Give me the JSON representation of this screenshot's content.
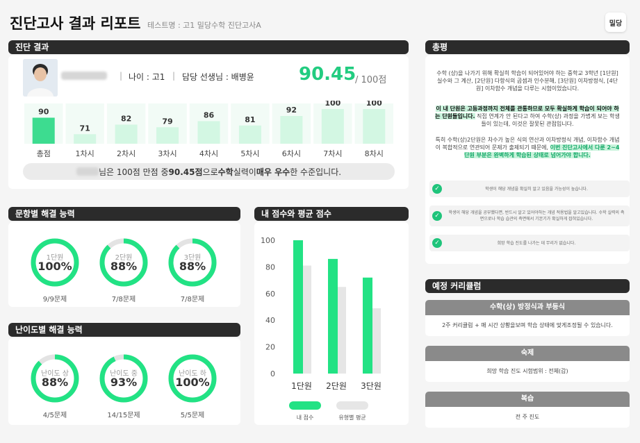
{
  "header": {
    "title": "진단고사 결과 리포트",
    "subtitle": "테스트명 : 고1 밀당수학 진단고사A",
    "logo": "밀당"
  },
  "result": {
    "section_title": "진단 결과",
    "age": "나이 : 고1",
    "teacher": "담당 선생님 : 배병윤",
    "score": "90.45",
    "score_max": "/ 100점",
    "summary_pre": "님은 100점 만점 중 ",
    "summary_score": "90.45점",
    "summary_mid1": "으로 ",
    "summary_subject": "수학",
    "summary_mid2": "실력이 ",
    "summary_level": "매우 우수",
    "summary_post": "한 수준입니다."
  },
  "session_chart": {
    "categories": [
      "총점",
      "1차시",
      "2차시",
      "3차시",
      "4차시",
      "5차시",
      "6차시",
      "7차시",
      "8차시"
    ],
    "values": [
      "90",
      "71",
      "82",
      "79",
      "86",
      "81",
      "92",
      "100",
      "100"
    ],
    "highlight_color": "#3ddc90",
    "bar_color": "#d3f7e3"
  },
  "ability": {
    "title": "문항별 해결 능력",
    "items": [
      {
        "name": "1단원",
        "pct": "100%",
        "count": "9/9문제",
        "ratio": 1.0
      },
      {
        "name": "2단원",
        "pct": "88%",
        "count": "7/8문제",
        "ratio": 0.88
      },
      {
        "name": "3단원",
        "pct": "88%",
        "count": "7/8문제",
        "ratio": 0.88
      }
    ]
  },
  "difficulty": {
    "title": "난이도별 해결 능력",
    "items": [
      {
        "name": "난이도 상",
        "pct": "88%",
        "count": "4/5문제",
        "ratio": 0.88
      },
      {
        "name": "난이도 중",
        "pct": "93%",
        "count": "14/15문제",
        "ratio": 0.93
      },
      {
        "name": "난이도 하",
        "pct": "100%",
        "count": "5/5문제",
        "ratio": 1.0
      }
    ]
  },
  "chart_data": {
    "type": "bar",
    "title": "내 점수와 평균 점수",
    "categories": [
      "1단원",
      "2단원",
      "3단원"
    ],
    "series": [
      {
        "name": "내 점수",
        "values": [
          100,
          86,
          72
        ],
        "color": "#22e284"
      },
      {
        "name": "유형별 평균",
        "values": [
          81,
          65,
          49
        ],
        "color": "#e6e6e6"
      }
    ],
    "yticks": [
      "0",
      "20",
      "40",
      "60",
      "80",
      "100"
    ],
    "ylim": [
      0,
      100
    ],
    "grid": false,
    "legend_position": "bottom"
  },
  "review": {
    "title": "총평",
    "p1": "수학 (상)을 나가기 위해 확실히 학습이 되어있어야 하는 중학교 3학년 [1단원] 실수와 그 계산, [2단원] 다항식의 곱셈과 인수분해, [3단원] 이차방정식, [4단원] 이차함수 개념을 다루는 시험이었습니다.",
    "p2_hl": "이 내 단원은 고등과정까지 전체를 관통하므로 모두 확실하게 학습이 되어야 하는 단원들입니다.",
    "p2_rest": " 직접 연계가 안 된다고 하여 수학(상) 과정을 가볍게 보는 학생들이 있는데, 이것은 잘못된 관점입니다.",
    "p3_rest": "특히 수학(상)2단원은 차수가 높은 식의 연산과 이차방정식 개념, 이차함수 개념이 복합적으로 연관되어 문제가 출제되기 때문에, ",
    "p3_hl": "이번 진단고사에서 다룬 2~4단원 부분은 완벽하게 학습된 상태로 넘어가야 합니다.",
    "checks": [
      "학생이 해당 개념을 확실히 알고 있음을 가능성이 높습니다.",
      "학생이 해당 개념을 공부했다면, 반드시 알고 있어야하는 개념 적용법을 알고있습니다. 수학 실력의 측면으로나 학습 습관의 측면에서 기본기가 확실하게 잡혀있습니다.",
      "희망 학습 진도를 나가는 데 무리가 없습니다."
    ]
  },
  "curriculum": {
    "title": "예정 커리큘럼",
    "course_head": "수학(상) 방정식과 부등식",
    "course_body": "2주 커리큘럼 + 매 시간 상황을보며 학습 상태에 맞게조정될 수 있습니다.",
    "hw_head": "숙제",
    "hw_body": "희망 학습 진도 시험범위 : 전체(갑)",
    "rev_head": "복습",
    "rev_body": "전 주 진도"
  }
}
